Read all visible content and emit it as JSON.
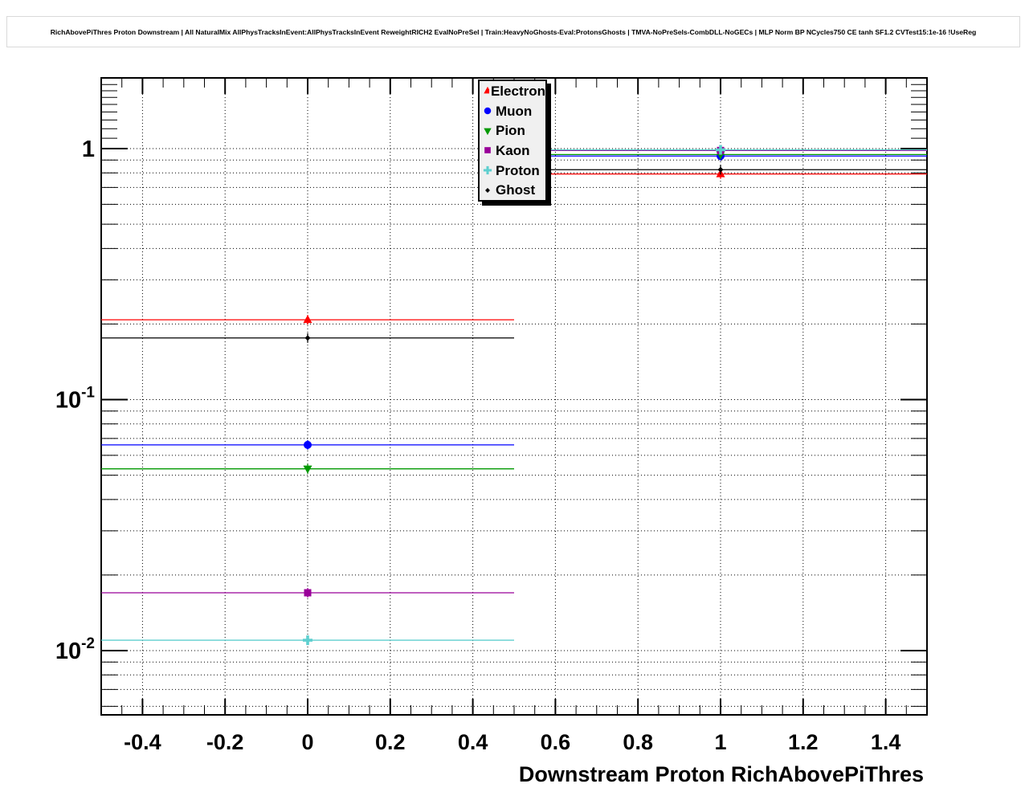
{
  "header": {
    "title": "RichAbovePiThres Proton Downstream | All NaturalMix AllPhysTracksInEvent:AllPhysTracksInEvent ReweightRICH2 EvalNoPreSel | Train:HeavyNoGhosts-Eval:ProtonsGhosts | TMVA-NoPreSels-CombDLL-NoGECs | MLP Norm BP NCycles750 CE tanh SF1.2 CVTest15:1e-16 !UseReg"
  },
  "chart_data": {
    "type": "line",
    "title": "RichAbovePiThres Proton Downstream | All NaturalMix AllPhysTracksInEvent:AllPhysTracksInEvent ReweightRICH2 EvalNoPreSel | Train:HeavyNoGhosts-Eval:ProtonsGhosts | TMVA-NoPreSels-CombDLL-NoGECs | MLP Norm BP NCycles750 CE tanh SF1.2 CVTest15:1e-16 !UseReg",
    "xlabel": "Downstream Proton RichAbovePiThres",
    "ylabel": "",
    "x_axis": {
      "min": -0.5,
      "max": 1.5,
      "major_tick_values": [
        -0.4,
        -0.2,
        0,
        0.2,
        0.4,
        0.6,
        0.8,
        1,
        1.2,
        1.4
      ],
      "tick_labels": [
        "-0.4",
        "-0.2",
        "0",
        "0.2",
        "0.4",
        "0.6",
        "0.8",
        "1",
        "1.2",
        "1.4"
      ],
      "minor_tick_step": 0.05
    },
    "y_axis": {
      "scale": "log",
      "min": 0.0055,
      "max": 1.91,
      "major_tick_values": [
        1,
        0.1,
        0.01
      ],
      "tick_labels": [
        {
          "base": "1",
          "exp": ""
        },
        {
          "base": "10",
          "exp": "-1"
        },
        {
          "base": "10",
          "exp": "-2"
        }
      ]
    },
    "grid": {
      "x": true,
      "y": true,
      "style": "dotted"
    },
    "bin_edges": [
      -0.5,
      0.5,
      1.5
    ],
    "bin_centers": [
      0,
      1
    ],
    "series": [
      {
        "name": "Electron",
        "color": "#ff0000",
        "marker": "triangle-up",
        "values": [
          0.208,
          0.792
        ]
      },
      {
        "name": "Muon",
        "color": "#0000ff",
        "marker": "circle",
        "values": [
          0.066,
          0.934
        ]
      },
      {
        "name": "Pion",
        "color": "#009900",
        "marker": "triangle-down",
        "values": [
          0.053,
          0.947
        ]
      },
      {
        "name": "Kaon",
        "color": "#990099",
        "marker": "square",
        "values": [
          0.017,
          0.983
        ]
      },
      {
        "name": "Proton",
        "color": "#5ecfcf",
        "marker": "plus",
        "values": [
          0.011,
          0.989
        ]
      },
      {
        "name": "Ghost",
        "color": "#000000",
        "marker": "diamond",
        "values": [
          0.176,
          0.824
        ]
      }
    ],
    "legend": {
      "position": "top-center",
      "entries": [
        "Electron",
        "Muon",
        "Pion",
        "Kaon",
        "Proton",
        "Ghost"
      ]
    }
  }
}
